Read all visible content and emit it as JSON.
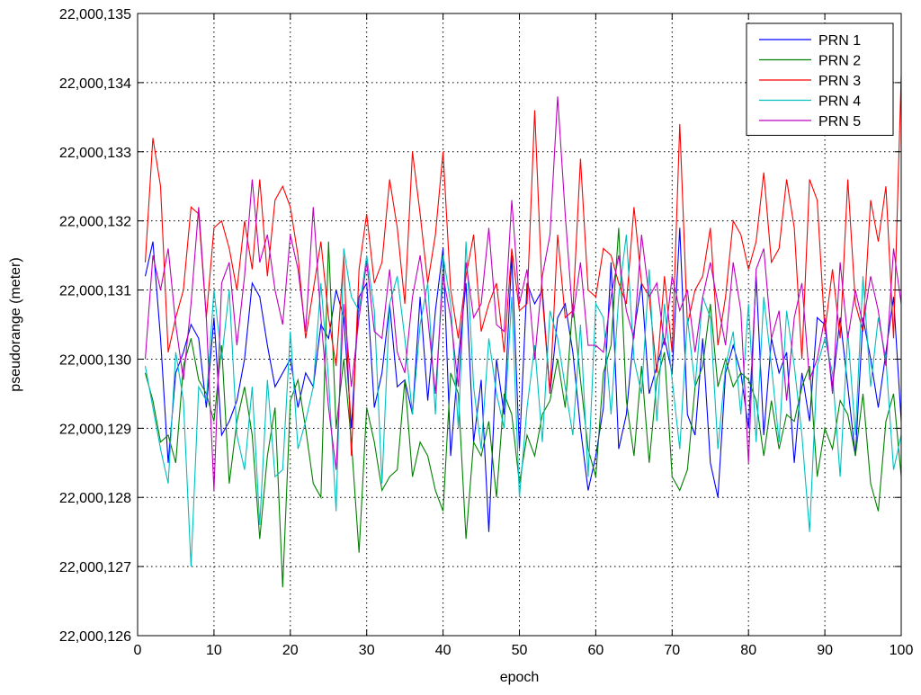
{
  "chart_data": {
    "type": "line",
    "title": "",
    "xlabel": "epoch",
    "ylabel": "pseudorange (meter)",
    "xlim": [
      0,
      100
    ],
    "ylim": [
      22000126,
      22000135
    ],
    "grid": true,
    "legend_position": "top-right",
    "x_ticks": [
      0,
      10,
      20,
      30,
      40,
      50,
      60,
      70,
      80,
      90,
      100
    ],
    "x_tick_labels": [
      "0",
      "10",
      "20",
      "30",
      "40",
      "50",
      "60",
      "70",
      "80",
      "90",
      "100"
    ],
    "y_ticks": [
      22000126,
      22000127,
      22000128,
      22000129,
      22000130,
      22000131,
      22000132,
      22000133,
      22000134,
      22000135
    ],
    "y_tick_labels": [
      "22,000,126",
      "22,000,127",
      "22,000,128",
      "22,000,129",
      "22,000,130",
      "22,000,131",
      "22,000,132",
      "22,000,133",
      "22,000,134",
      "22,000,135"
    ],
    "series": [
      {
        "name": "PRN 1",
        "color": "#0000ff",
        "x": [
          1,
          2,
          3,
          4,
          5,
          6,
          7,
          8,
          9,
          10,
          11,
          12,
          13,
          14,
          15,
          16,
          17,
          18,
          19,
          20,
          21,
          22,
          23,
          24,
          25,
          26,
          27,
          28,
          29,
          30,
          31,
          32,
          33,
          34,
          35,
          36,
          37,
          38,
          39,
          40,
          41,
          42,
          43,
          44,
          45,
          46,
          47,
          48,
          49,
          50,
          51,
          52,
          53,
          54,
          55,
          56,
          57,
          58,
          59,
          60,
          61,
          62,
          63,
          64,
          65,
          66,
          67,
          68,
          69,
          70,
          71,
          72,
          73,
          74,
          75,
          76,
          77,
          78,
          79,
          80,
          81,
          82,
          83,
          84,
          85,
          86,
          87,
          88,
          89,
          90,
          91,
          92,
          93,
          94,
          95,
          96,
          97,
          98,
          99,
          100
        ],
        "values": [
          22000131.2,
          22000131.7,
          22000130.3,
          22000128.5,
          22000129.8,
          22000130.1,
          22000130.5,
          22000130.3,
          22000129.3,
          22000130.6,
          22000128.9,
          22000129.1,
          22000129.4,
          22000130.0,
          22000131.1,
          22000130.9,
          22000130.2,
          22000129.6,
          22000129.8,
          22000130.0,
          22000129.3,
          22000129.8,
          22000129.6,
          22000130.5,
          22000130.3,
          22000131.0,
          22000130.6,
          22000129.0,
          22000130.9,
          22000131.1,
          22000129.3,
          22000129.8,
          22000130.8,
          22000129.6,
          22000129.7,
          22000129.2,
          22000130.9,
          22000129.4,
          22000130.7,
          22000131.6,
          22000128.6,
          22000130.0,
          22000131.1,
          22000128.8,
          22000129.7,
          22000127.5,
          22000130.0,
          22000129.2,
          22000131.5,
          22000128.7,
          22000131.1,
          22000130.8,
          22000131.0,
          22000129.5,
          22000130.6,
          22000130.8,
          22000130.1,
          22000129.0,
          22000128.1,
          22000128.6,
          22000129.3,
          22000131.4,
          22000128.7,
          22000129.2,
          22000130.4,
          22000131.1,
          22000129.5,
          22000129.9,
          22000130.3,
          22000129.8,
          22000131.9,
          22000129.2,
          22000128.9,
          22000130.3,
          22000128.5,
          22000128.0,
          22000129.8,
          22000130.2,
          22000129.8,
          22000129.0,
          22000131.2,
          22000128.9,
          22000130.3,
          22000129.8,
          22000130.1,
          22000128.5,
          22000129.8,
          22000129.1,
          22000130.6,
          22000130.5,
          22000129.6,
          22000130.6,
          22000129.6,
          22000128.6,
          22000130.6,
          22000130.0,
          22000129.3,
          22000130.1,
          22000130.9,
          22000129.1
        ]
      },
      {
        "name": "PRN 2",
        "color": "#008000",
        "x": [
          1,
          2,
          3,
          4,
          5,
          6,
          7,
          8,
          9,
          10,
          11,
          12,
          13,
          14,
          15,
          16,
          17,
          18,
          19,
          20,
          21,
          22,
          23,
          24,
          25,
          26,
          27,
          28,
          29,
          30,
          31,
          32,
          33,
          34,
          35,
          36,
          37,
          38,
          39,
          40,
          41,
          42,
          43,
          44,
          45,
          46,
          47,
          48,
          49,
          50,
          51,
          52,
          53,
          54,
          55,
          56,
          57,
          58,
          59,
          60,
          61,
          62,
          63,
          64,
          65,
          66,
          67,
          68,
          69,
          70,
          71,
          72,
          73,
          74,
          75,
          76,
          77,
          78,
          79,
          80,
          81,
          82,
          83,
          84,
          85,
          86,
          87,
          88,
          89,
          90,
          91,
          92,
          93,
          94,
          95,
          96,
          97,
          98,
          99,
          100
        ],
        "values": [
          22000129.8,
          22000129.4,
          22000128.8,
          22000128.9,
          22000128.5,
          22000129.9,
          22000130.3,
          22000129.7,
          22000129.5,
          22000129.1,
          22000130.2,
          22000128.2,
          22000129.1,
          22000129.6,
          22000128.9,
          22000127.4,
          22000128.6,
          22000129.3,
          22000126.7,
          22000129.4,
          22000129.7,
          22000129.0,
          22000128.2,
          22000128.0,
          22000131.7,
          22000129.0,
          22000130.0,
          22000128.8,
          22000127.2,
          22000129.3,
          22000128.8,
          22000128.1,
          22000128.3,
          22000128.4,
          22000129.7,
          22000128.3,
          22000128.8,
          22000128.6,
          22000128.1,
          22000127.8,
          22000129.8,
          22000129.5,
          22000127.4,
          22000128.8,
          22000128.6,
          22000129.1,
          22000128.0,
          22000129.5,
          22000129.2,
          22000128.2,
          22000128.9,
          22000128.6,
          22000129.2,
          22000129.4,
          22000130.0,
          22000129.3,
          22000130.8,
          22000129.7,
          22000128.7,
          22000128.3,
          22000129.8,
          22000130.2,
          22000131.9,
          22000129.4,
          22000128.6,
          22000129.9,
          22000128.5,
          22000129.7,
          22000130.1,
          22000128.3,
          22000128.1,
          22000128.4,
          22000129.6,
          22000129.9,
          22000130.8,
          22000129.6,
          22000130.0,
          22000129.6,
          22000129.8,
          22000129.7,
          22000129.4,
          22000128.6,
          22000129.4,
          22000128.7,
          22000129.2,
          22000129.1,
          22000129.6,
          22000129.9,
          22000128.3,
          22000129.0,
          22000128.7,
          22000129.4,
          22000129.2,
          22000128.6,
          22000129.5,
          22000128.2,
          22000127.8,
          22000129.1,
          22000129.5,
          22000128.3
        ]
      },
      {
        "name": "PRN 3",
        "color": "#ff0000",
        "x": [
          1,
          2,
          3,
          4,
          5,
          6,
          7,
          8,
          9,
          10,
          11,
          12,
          13,
          14,
          15,
          16,
          17,
          18,
          19,
          20,
          21,
          22,
          23,
          24,
          25,
          26,
          27,
          28,
          29,
          30,
          31,
          32,
          33,
          34,
          35,
          36,
          37,
          38,
          39,
          40,
          41,
          42,
          43,
          44,
          45,
          46,
          47,
          48,
          49,
          50,
          51,
          52,
          53,
          54,
          55,
          56,
          57,
          58,
          59,
          60,
          61,
          62,
          63,
          64,
          65,
          66,
          67,
          68,
          69,
          70,
          71,
          72,
          73,
          74,
          75,
          76,
          77,
          78,
          79,
          80,
          81,
          82,
          83,
          84,
          85,
          86,
          87,
          88,
          89,
          90,
          91,
          92,
          93,
          94,
          95,
          96,
          97,
          98,
          99,
          100
        ],
        "values": [
          22000131.4,
          22000133.2,
          22000132.5,
          22000130.1,
          22000130.6,
          22000131.0,
          22000132.2,
          22000132.1,
          22000130.6,
          22000131.9,
          22000132.0,
          22000131.6,
          22000131.0,
          22000132.0,
          22000131.3,
          22000132.6,
          22000131.2,
          22000132.3,
          22000132.5,
          22000132.2,
          22000131.5,
          22000130.3,
          22000131.0,
          22000131.7,
          22000130.6,
          22000129.9,
          22000131.5,
          22000128.6,
          22000131.3,
          22000132.1,
          22000131.1,
          22000131.4,
          22000132.6,
          22000131.9,
          22000130.8,
          22000133.0,
          22000132.1,
          22000131.1,
          22000131.8,
          22000133.0,
          22000131.0,
          22000130.3,
          22000131.2,
          22000131.8,
          22000130.4,
          22000130.8,
          22000131.1,
          22000130.1,
          22000131.6,
          22000130.7,
          22000130.8,
          22000133.6,
          22000130.9,
          22000129.5,
          22000131.8,
          22000130.6,
          22000130.7,
          22000132.9,
          22000131.0,
          22000130.9,
          22000131.6,
          22000131.5,
          22000131.1,
          22000130.8,
          22000132.2,
          22000131.1,
          22000130.9,
          22000129.8,
          22000131.2,
          22000130.1,
          22000133.4,
          22000130.5,
          22000131.0,
          22000131.2,
          22000131.9,
          22000130.2,
          22000130.9,
          22000132.0,
          22000131.8,
          22000131.3,
          22000131.7,
          22000132.7,
          22000131.4,
          22000131.6,
          22000132.6,
          22000131.9,
          22000130.0,
          22000132.6,
          22000132.3,
          22000130.4,
          22000131.3,
          22000130.3,
          22000132.6,
          22000130.8,
          22000130.4,
          22000132.3,
          22000131.7,
          22000132.5,
          22000130.3,
          22000134.1
        ]
      },
      {
        "name": "PRN 4",
        "color": "#00bfbf",
        "x": [
          1,
          2,
          3,
          4,
          5,
          6,
          7,
          8,
          9,
          10,
          11,
          12,
          13,
          14,
          15,
          16,
          17,
          18,
          19,
          20,
          21,
          22,
          23,
          24,
          25,
          26,
          27,
          28,
          29,
          30,
          31,
          32,
          33,
          34,
          35,
          36,
          37,
          38,
          39,
          40,
          41,
          42,
          43,
          44,
          45,
          46,
          47,
          48,
          49,
          50,
          51,
          52,
          53,
          54,
          55,
          56,
          57,
          58,
          59,
          60,
          61,
          62,
          63,
          64,
          65,
          66,
          67,
          68,
          69,
          70,
          71,
          72,
          73,
          74,
          75,
          76,
          77,
          78,
          79,
          80,
          81,
          82,
          83,
          84,
          85,
          86,
          87,
          88,
          89,
          90,
          91,
          92,
          93,
          94,
          95,
          96,
          97,
          98,
          99,
          100
        ],
        "values": [
          22000129.9,
          22000129.3,
          22000128.7,
          22000128.2,
          22000130.1,
          22000129.4,
          22000127.0,
          22000129.6,
          22000129.4,
          22000131.0,
          22000130.0,
          22000131.0,
          22000128.9,
          22000128.4,
          22000129.6,
          22000127.6,
          22000129.7,
          22000128.3,
          22000128.4,
          22000130.4,
          22000128.7,
          22000129.1,
          22000129.6,
          22000131.1,
          22000129.7,
          22000127.8,
          22000131.6,
          22000130.9,
          22000130.7,
          22000131.5,
          22000130.7,
          22000128.2,
          22000130.8,
          22000131.2,
          22000130.3,
          22000129.2,
          22000130.5,
          22000131.1,
          22000129.2,
          22000131.5,
          22000130.8,
          22000129.0,
          22000131.7,
          22000129.6,
          22000128.7,
          22000130.3,
          22000129.5,
          22000129.0,
          22000130.9,
          22000128.0,
          22000129.3,
          22000130.2,
          22000128.8,
          22000130.7,
          22000130.3,
          22000129.6,
          22000128.9,
          22000130.5,
          22000128.3,
          22000130.8,
          22000130.6,
          22000129.2,
          22000130.9,
          22000131.8,
          22000130.0,
          22000129.5,
          22000131.3,
          22000129.1,
          22000130.8,
          22000129.7,
          22000128.7,
          22000130.6,
          22000129.6,
          22000130.9,
          22000130.6,
          22000128.7,
          22000129.9,
          22000130.4,
          22000129.2,
          22000130.8,
          22000128.8,
          22000130.9,
          22000129.9,
          22000128.8,
          22000130.7,
          22000129.9,
          22000128.9,
          22000127.5,
          22000129.9,
          22000130.3,
          22000129.8,
          22000128.3,
          22000130.4,
          22000128.9,
          22000131.2,
          22000129.6,
          22000130.6,
          22000130.0,
          22000128.4,
          22000128.9
        ]
      },
      {
        "name": "PRN 5",
        "color": "#bf00bf",
        "x": [
          1,
          2,
          3,
          4,
          5,
          6,
          7,
          8,
          9,
          10,
          11,
          12,
          13,
          14,
          15,
          16,
          17,
          18,
          19,
          20,
          21,
          22,
          23,
          24,
          25,
          26,
          27,
          28,
          29,
          30,
          31,
          32,
          33,
          34,
          35,
          36,
          37,
          38,
          39,
          40,
          41,
          42,
          43,
          44,
          45,
          46,
          47,
          48,
          49,
          50,
          51,
          52,
          53,
          54,
          55,
          56,
          57,
          58,
          59,
          60,
          61,
          62,
          63,
          64,
          65,
          66,
          67,
          68,
          69,
          70,
          71,
          72,
          73,
          74,
          75,
          76,
          77,
          78,
          79,
          80,
          81,
          82,
          83,
          84,
          85,
          86,
          87,
          88,
          89,
          90,
          91,
          92,
          93,
          94,
          95,
          96,
          97,
          98,
          99,
          100
        ],
        "values": [
          22000130.0,
          22000131.5,
          22000131.0,
          22000131.6,
          22000130.5,
          22000129.7,
          22000130.8,
          22000132.2,
          22000130.6,
          22000128.1,
          22000131.1,
          22000131.4,
          22000130.2,
          22000131.2,
          22000132.6,
          22000131.4,
          22000131.8,
          22000131.0,
          22000130.5,
          22000131.8,
          22000131.3,
          22000130.4,
          22000132.2,
          22000130.6,
          22000129.3,
          22000128.4,
          22000130.8,
          22000129.6,
          22000130.6,
          22000131.4,
          22000130.4,
          22000130.3,
          22000131.3,
          22000130.1,
          22000129.8,
          22000130.9,
          22000131.5,
          22000130.6,
          22000129.5,
          22000131.2,
          22000130.6,
          22000129.6,
          22000131.4,
          22000130.6,
          22000130.8,
          22000131.9,
          22000130.5,
          22000130.4,
          22000132.3,
          22000130.8,
          22000131.3,
          22000130.0,
          22000131.2,
          22000131.8,
          22000133.8,
          22000132.1,
          22000130.6,
          22000131.4,
          22000130.2,
          22000130.2,
          22000130.1,
          22000130.9,
          22000131.5,
          22000130.7,
          22000130.3,
          22000131.8,
          22000130.9,
          22000131.1,
          22000130.2,
          22000131.2,
          22000130.7,
          22000131.0,
          22000130.1,
          22000130.9,
          22000131.4,
          22000130.8,
          22000130.2,
          22000131.4,
          22000130.7,
          22000128.5,
          22000131.3,
          22000131.6,
          22000130.3,
          22000130.7,
          22000129.4,
          22000130.6,
          22000131.1,
          22000129.7,
          22000130.0,
          22000130.6,
          22000129.5,
          22000131.4,
          22000130.3,
          22000131.0,
          22000130.5,
          22000131.2,
          22000130.7,
          22000129.9,
          22000131.6,
          22000130.8
        ]
      }
    ]
  }
}
